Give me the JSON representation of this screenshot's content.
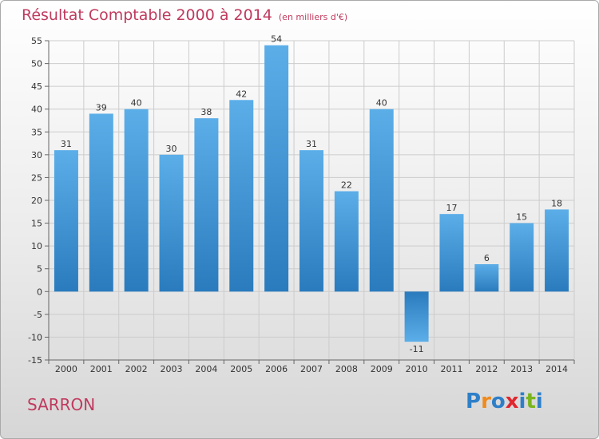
{
  "header": {
    "title": "Résultat Comptable 2000 à 2014",
    "subtitle": "(en milliers d'€)"
  },
  "footer": {
    "place": "SARRON",
    "brand": "Proxiti",
    "brand_letters": [
      {
        "char": "P",
        "color": "#2e7fc8"
      },
      {
        "char": "r",
        "color": "#f08a1c"
      },
      {
        "char": "o",
        "color": "#2e7fc8"
      },
      {
        "char": "x",
        "color": "#e0262e"
      },
      {
        "char": "i",
        "color": "#2e7fc8"
      },
      {
        "char": "t",
        "color": "#7ab51d"
      },
      {
        "char": "i",
        "color": "#2e7fc8"
      }
    ]
  },
  "colors": {
    "accent": "#c03a5e",
    "bar_light": "#5baee8",
    "bar_dark": "#2a7bbd",
    "grid": "#cccccc",
    "axis": "#666666"
  },
  "chart_data": {
    "type": "bar",
    "title": "Résultat Comptable 2000 à 2014",
    "subtitle": "(en milliers d'€)",
    "xlabel": "",
    "ylabel": "",
    "categories": [
      "2000",
      "2001",
      "2002",
      "2003",
      "2004",
      "2005",
      "2006",
      "2007",
      "2008",
      "2009",
      "2010",
      "2011",
      "2012",
      "2013",
      "2014"
    ],
    "values": [
      31,
      39,
      40,
      30,
      38,
      42,
      54,
      31,
      22,
      40,
      -11,
      17,
      6,
      15,
      18
    ],
    "ylim": [
      -15,
      55
    ],
    "yticks": [
      -15,
      -10,
      -5,
      0,
      5,
      10,
      15,
      20,
      25,
      30,
      35,
      40,
      45,
      50,
      55
    ],
    "grid": true,
    "legend": "none"
  }
}
